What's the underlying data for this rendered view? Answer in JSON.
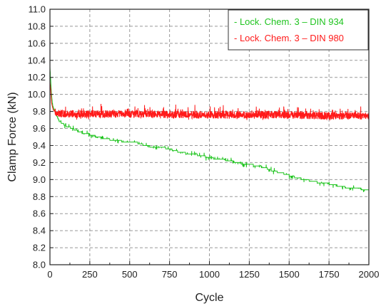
{
  "chart_data": {
    "type": "line",
    "title": "",
    "xlabel": "Cycle",
    "ylabel": "Clamp Force (kN)",
    "xlim": [
      0,
      2000
    ],
    "ylim": [
      8.0,
      11.0
    ],
    "x_ticks": [
      0,
      250,
      500,
      750,
      1000,
      1250,
      1500,
      1750,
      2000
    ],
    "y_ticks": [
      8.0,
      8.2,
      8.4,
      8.6,
      8.8,
      9.0,
      9.2,
      9.4,
      9.6,
      9.8,
      10.0,
      10.2,
      10.4,
      10.6,
      10.8,
      11.0
    ],
    "x_tick_labels": [
      "0",
      "250",
      "500",
      "750",
      "1000",
      "1250",
      "1500",
      "1750",
      "2000"
    ],
    "y_tick_labels": [
      "8.0",
      "8.2",
      "8.4",
      "8.6",
      "8.8",
      "9.0",
      "9.2",
      "9.4",
      "9.6",
      "9.8",
      "10.0",
      "10.2",
      "10.4",
      "10.6",
      "10.8",
      "11.0"
    ],
    "grid": true,
    "legend_position": "top-right",
    "series": [
      {
        "name": "- Lock. Chem. 3 – DIN 934",
        "color": "#1fc41f",
        "x": [
          0,
          5,
          10,
          15,
          20,
          30,
          40,
          50,
          60,
          80,
          100,
          130,
          160,
          200,
          250,
          300,
          350,
          400,
          450,
          500,
          550,
          600,
          650,
          700,
          750,
          800,
          850,
          900,
          950,
          1000,
          1050,
          1100,
          1150,
          1200,
          1250,
          1300,
          1350,
          1400,
          1450,
          1500,
          1550,
          1600,
          1650,
          1700,
          1750,
          1800,
          1850,
          1900,
          1950,
          2000
        ],
        "y": [
          10.32,
          10.15,
          10.0,
          9.9,
          9.85,
          9.8,
          9.76,
          9.72,
          9.68,
          9.66,
          9.63,
          9.61,
          9.58,
          9.55,
          9.53,
          9.5,
          9.48,
          9.46,
          9.45,
          9.45,
          9.43,
          9.4,
          9.38,
          9.38,
          9.36,
          9.33,
          9.31,
          9.3,
          9.28,
          9.26,
          9.24,
          9.23,
          9.21,
          9.19,
          9.18,
          9.16,
          9.14,
          9.1,
          9.08,
          9.05,
          9.02,
          9.0,
          8.98,
          8.96,
          8.95,
          8.93,
          8.91,
          8.9,
          8.89,
          8.88
        ]
      },
      {
        "name": "- Lock. Chem. 3 – DIN 980",
        "color": "#ff1a1a",
        "x": [
          0,
          5,
          10,
          20,
          30,
          50,
          100,
          200,
          300,
          400,
          500,
          600,
          700,
          800,
          900,
          1000,
          1100,
          1200,
          1300,
          1400,
          1500,
          1600,
          1700,
          1800,
          1900,
          2000
        ],
        "y": [
          10.15,
          10.05,
          9.9,
          9.82,
          9.8,
          9.78,
          9.77,
          9.77,
          9.77,
          9.77,
          9.77,
          9.77,
          9.77,
          9.76,
          9.76,
          9.76,
          9.76,
          9.76,
          9.76,
          9.76,
          9.76,
          9.75,
          9.75,
          9.75,
          9.75,
          9.75
        ]
      }
    ]
  }
}
